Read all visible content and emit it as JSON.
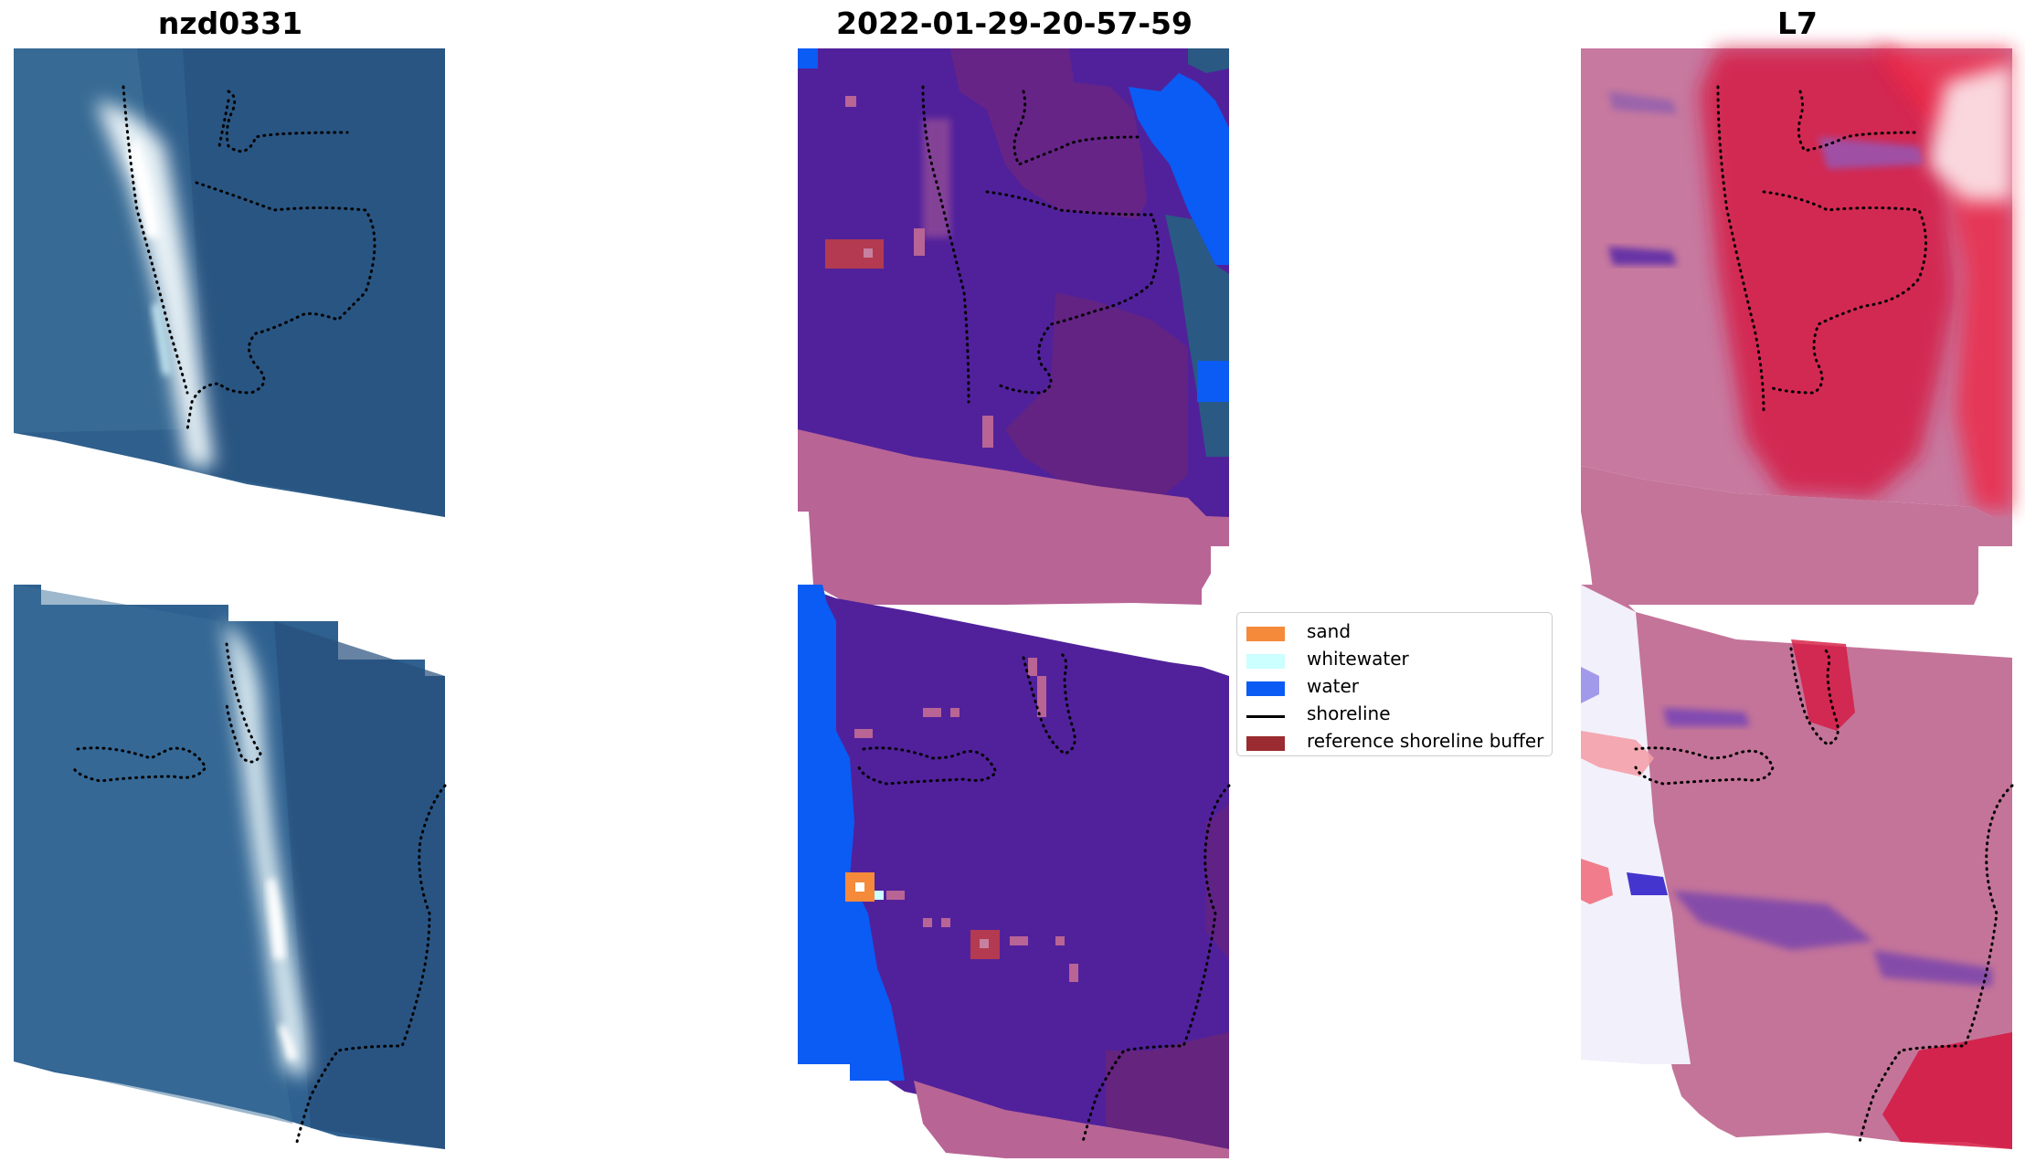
{
  "panels": {
    "left_title": "nzd0331",
    "center_title": "2022-01-29-20-57-59",
    "right_title": "L7"
  },
  "legend": {
    "items": [
      {
        "label": "sand",
        "color": "#f48a3a",
        "kind": "patch"
      },
      {
        "label": "whitewater",
        "color": "#ccffff",
        "kind": "patch"
      },
      {
        "label": "water",
        "color": "#0a5cf4",
        "kind": "patch"
      },
      {
        "label": "shoreline",
        "color": "#000000",
        "kind": "line"
      },
      {
        "label": "reference shoreline buffer",
        "color": "#9a2b30",
        "kind": "patch"
      }
    ]
  },
  "colors": {
    "land_purple": "#51219b",
    "buffer_pink": "#b86495",
    "water_blue": "#0a5cf4",
    "rgb_water": "#2f5f8c",
    "rgb_surf": "#e8f2f6",
    "index_pink": "#c7799f",
    "index_red": "#d5163f"
  }
}
